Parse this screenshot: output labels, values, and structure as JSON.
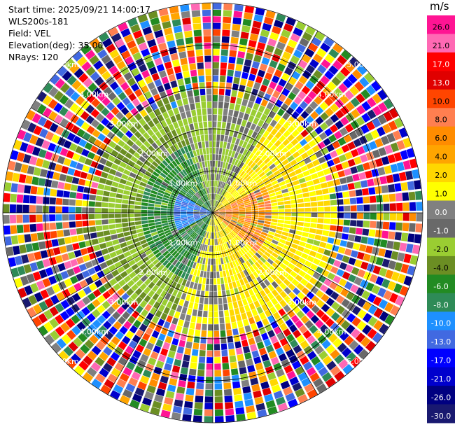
{
  "header": {
    "start_time": "Start time: 2025/09/21 14:00:17",
    "station": "WLS200s-181",
    "field": "Field: VEL",
    "elevation": "Elevation(deg): 35.00",
    "nrays": "NRays: 120"
  },
  "chart_data": {
    "type": "heatmap",
    "subtype": "ppi-polar",
    "field": "VEL",
    "units": "m/s",
    "nrays": 120,
    "range_ring_labels": [
      "1.00km",
      "2.00km",
      "3.00km",
      "4.00km",
      "5.00km"
    ],
    "range_rings_km": [
      1,
      2,
      3,
      4,
      5
    ],
    "max_range_km": 5.1,
    "colorbar": {
      "unit": "m/s",
      "tick_labels": [
        "26.0",
        "21.0",
        "17.0",
        "13.0",
        "10.0",
        "8.0",
        "6.0",
        "4.0",
        "2.0",
        "1.0",
        "0.0",
        "-1.0",
        "-2.0",
        "-4.0",
        "-6.0",
        "-8.0",
        "-10.0",
        "-13.0",
        "-17.0",
        "-21.0",
        "-26.0",
        "-30.0"
      ],
      "colors": [
        "#ff1493",
        "#ff69b4",
        "#ff0000",
        "#e00000",
        "#ff4500",
        "#ff7f50",
        "#ff8c00",
        "#ffa500",
        "#ffd700",
        "#ffff00",
        "#808080",
        "#696969",
        "#9acd32",
        "#6b8e23",
        "#228b22",
        "#2e8b57",
        "#1e90ff",
        "#4169e1",
        "#0000ff",
        "#0000cd",
        "#000080",
        "#191970"
      ]
    },
    "sectors_summary": [
      {
        "description": "approaching (negative) velocities west of radar",
        "dominant": "-2.0 to -6.0"
      },
      {
        "description": "receding (positive) velocities east of radar",
        "dominant": "2.0 to 8.0"
      },
      {
        "description": "noise beyond ~2.5km",
        "dominant": "mixed"
      }
    ]
  }
}
